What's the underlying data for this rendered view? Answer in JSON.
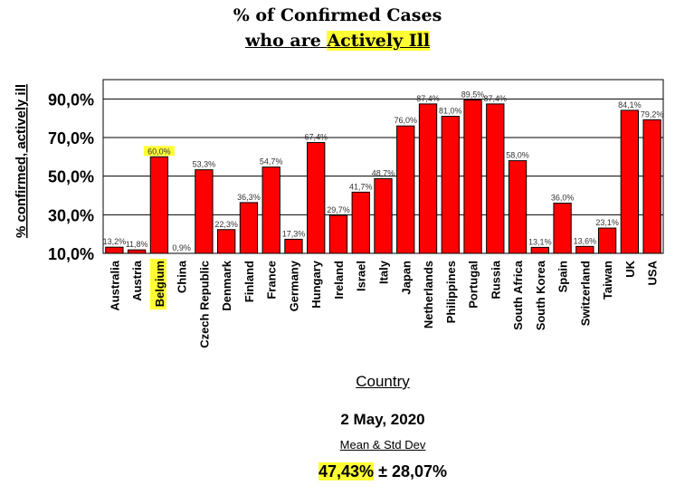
{
  "header": {
    "title": "% of Confirmed Cases",
    "subtitle_prefix": "who are ",
    "subtitle_highlight": "Actively Ill"
  },
  "footer": {
    "date": "2 May, 2020",
    "stat_label": "Mean & Std Dev",
    "mean": "47,43%",
    "std": " ± 28,07%"
  },
  "colors": {
    "bar": "#ff0000",
    "highlight": "#ffff33"
  },
  "chart_data": {
    "type": "bar",
    "xlabel": "Country",
    "ylabel": "% confirmed, actively ill",
    "ylim": [
      10,
      100
    ],
    "yticks": [
      10,
      30,
      50,
      70,
      90
    ],
    "ytick_labels": [
      "10,0%",
      "30,0%",
      "50,0%",
      "70,0%",
      "90,0%"
    ],
    "grid": true,
    "highlight_category": "Belgium",
    "categories": [
      "Australia",
      "Austria",
      "Belgium",
      "China",
      "Czech Republic",
      "Denmark",
      "Finland",
      "France",
      "Germany",
      "Hungary",
      "Ireland",
      "Israel",
      "Italy",
      "Japan",
      "Netherlands",
      "Philippines",
      "Portugal",
      "Russia",
      "South Africa",
      "South Korea",
      "Spain",
      "Switzerland",
      "Taiwan",
      "UK",
      "USA"
    ],
    "values": [
      13.2,
      11.8,
      60.0,
      0.9,
      53.3,
      22.3,
      36.3,
      54.7,
      17.3,
      67.4,
      29.7,
      41.7,
      48.7,
      76.0,
      87.4,
      81.0,
      89.5,
      87.4,
      58.0,
      13.1,
      36.0,
      13.6,
      23.1,
      84.1,
      79.2
    ],
    "value_labels": [
      "13,2%",
      "11,8%",
      "60,0%",
      "0,9%",
      "53,3%",
      "22,3%",
      "36,3%",
      "54,7%",
      "17,3%",
      "67,4%",
      "29,7%",
      "41,7%",
      "48,7%",
      "76,0%",
      "87,4%",
      "81,0%",
      "89,5%",
      "87,4%",
      "58,0%",
      "13,1%",
      "36,0%",
      "13,6%",
      "23,1%",
      "84,1%",
      "79,2%"
    ]
  }
}
